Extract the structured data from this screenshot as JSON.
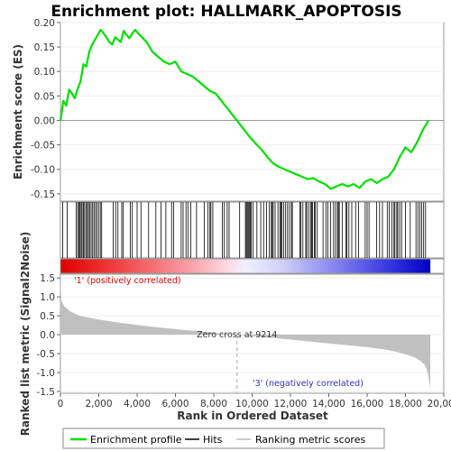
{
  "chart_data": {
    "type": "line",
    "title": "Enrichment plot: HALLMARK_APOPTOSIS",
    "panels": {
      "enrichment": {
        "ylabel": "Enrichment score (ES)",
        "ylim": [
          -0.165,
          0.2
        ],
        "yticks": [
          "0.20",
          "0.15",
          "0.10",
          "0.05",
          "0.00",
          "-0.05",
          "-0.10",
          "-0.15"
        ],
        "ytick_values": [
          0.2,
          0.15,
          0.1,
          0.05,
          0.0,
          -0.05,
          -0.1,
          -0.15
        ],
        "series": [
          {
            "name": "Enrichment profile",
            "color": "#00e000",
            "x": [
              0,
              150,
              300,
              450,
              600,
              750,
              900,
              1050,
              1200,
              1350,
              1500,
              1650,
              1800,
              1950,
              2100,
              2250,
              2400,
              2550,
              2700,
              2850,
              3000,
              3150,
              3300,
              3450,
              3600,
              3750,
              3900,
              4050,
              4200,
              4500,
              4800,
              5100,
              5400,
              5700,
              6000,
              6300,
              6600,
              6900,
              7200,
              7500,
              7800,
              8100,
              8400,
              8700,
              9000,
              9300,
              9600,
              9900,
              10200,
              10500,
              10800,
              11100,
              11400,
              11700,
              12000,
              12300,
              12600,
              12900,
              13200,
              13500,
              13800,
              14100,
              14400,
              14700,
              15000,
              15300,
              15600,
              15900,
              16200,
              16500,
              16800,
              17100,
              17400,
              17700,
              18000,
              18300,
              18600,
              18900,
              19200
            ],
            "y": [
              0.0,
              0.04,
              0.03,
              0.063,
              0.055,
              0.045,
              0.065,
              0.08,
              0.115,
              0.11,
              0.14,
              0.155,
              0.165,
              0.175,
              0.185,
              0.178,
              0.17,
              0.16,
              0.155,
              0.17,
              0.165,
              0.16,
              0.183,
              0.175,
              0.168,
              0.178,
              0.185,
              0.178,
              0.172,
              0.16,
              0.14,
              0.13,
              0.12,
              0.115,
              0.12,
              0.1,
              0.095,
              0.09,
              0.08,
              0.07,
              0.06,
              0.055,
              0.04,
              0.025,
              0.01,
              -0.005,
              -0.02,
              -0.035,
              -0.048,
              -0.06,
              -0.075,
              -0.088,
              -0.095,
              -0.1,
              -0.105,
              -0.11,
              -0.115,
              -0.12,
              -0.118,
              -0.125,
              -0.13,
              -0.14,
              -0.135,
              -0.13,
              -0.135,
              -0.13,
              -0.138,
              -0.125,
              -0.12,
              -0.128,
              -0.12,
              -0.115,
              -0.1,
              -0.075,
              -0.055,
              -0.065,
              -0.045,
              -0.02,
              0.0
            ]
          }
        ]
      },
      "hits": {
        "legend": "Hits",
        "hit_ranks": [
          120,
          350,
          820,
          900,
          960,
          1020,
          1080,
          1130,
          1200,
          1260,
          1330,
          1400,
          1460,
          1520,
          1600,
          1680,
          1750,
          1830,
          1900,
          1990,
          2080,
          2150,
          2750,
          2880,
          3000,
          3200,
          3280,
          3650,
          3750,
          4000,
          4200,
          4600,
          4980,
          5250,
          5500,
          5800,
          5900,
          6300,
          6400,
          6550,
          6650,
          6800,
          7100,
          7500,
          7700,
          7800,
          7850,
          7950,
          8450,
          8550,
          8700,
          8800,
          9350,
          9650,
          9700,
          9750,
          9800,
          9850,
          9900,
          9950,
          10050,
          10250,
          10450,
          10600,
          10750,
          10900,
          11000,
          11050,
          11100,
          11200,
          11350,
          11450,
          11500,
          11550,
          11650,
          11750,
          11850,
          11950,
          12050,
          12100,
          12500,
          12550,
          12650,
          12800,
          12850,
          12950,
          13050,
          13100,
          13150,
          13250,
          13300,
          13400,
          13700,
          13850,
          13950,
          14100,
          14250,
          14350,
          14450,
          14500,
          14550,
          14700,
          14900,
          14950,
          15050,
          15200,
          15400,
          15550,
          15900,
          16000,
          16100,
          16500,
          16650,
          16800,
          17050,
          17150,
          17300,
          17400,
          17450,
          17550,
          17600,
          17700,
          17800,
          18000,
          18250,
          18550,
          18650,
          18750,
          18850,
          18950,
          19050
        ]
      },
      "metric": {
        "ylabel": "Ranked list metric (Signal2Noise)",
        "xlabel": "Rank in Ordered Dataset",
        "ylim": [
          -1.55,
          1.6
        ],
        "yticks": [
          "1.5",
          "1.0",
          "0.5",
          "0.0",
          "-0.5",
          "-1.0",
          "-1.5"
        ],
        "ytick_values": [
          1.5,
          1.0,
          0.5,
          0.0,
          -0.5,
          -1.0,
          -1.5
        ],
        "xlim": [
          0,
          20000
        ],
        "xticks": [
          "0",
          "2,000",
          "4,000",
          "6,000",
          "8,000",
          "10,000",
          "12,000",
          "14,000",
          "16,000",
          "18,000",
          "20,000"
        ],
        "xtick_values": [
          0,
          2000,
          4000,
          6000,
          8000,
          10000,
          12000,
          14000,
          16000,
          18000,
          20000
        ],
        "x": [
          0,
          50,
          200,
          500,
          1000,
          2000,
          3000,
          4000,
          5000,
          6000,
          7000,
          8000,
          9214,
          10000,
          11000,
          12000,
          13000,
          14000,
          15000,
          16000,
          17000,
          17500,
          18000,
          18500,
          18800,
          19000,
          19100,
          19200,
          19250,
          19300
        ],
        "values": [
          1.5,
          0.9,
          0.75,
          0.62,
          0.5,
          0.4,
          0.32,
          0.26,
          0.2,
          0.15,
          0.1,
          0.05,
          0.0,
          -0.04,
          -0.08,
          -0.13,
          -0.18,
          -0.23,
          -0.28,
          -0.33,
          -0.4,
          -0.45,
          -0.52,
          -0.6,
          -0.7,
          -0.8,
          -0.9,
          -1.1,
          -1.3,
          -1.45
        ],
        "zero_cross_label": "Zero cross at 9214",
        "zero_cross": 9214,
        "pos_label": "'1' (positively correlated)",
        "neg_label": "'3' (negatively correlated)"
      }
    },
    "max_rank": 19300,
    "legend": {
      "position": "bottom",
      "items": [
        "Enrichment profile",
        "Hits",
        "Ranking metric scores"
      ]
    },
    "colors": {
      "es_line": "#00e000",
      "metric_fill": "#c0c0c0",
      "pos": "#e00000",
      "neg": "#0000d0"
    }
  }
}
